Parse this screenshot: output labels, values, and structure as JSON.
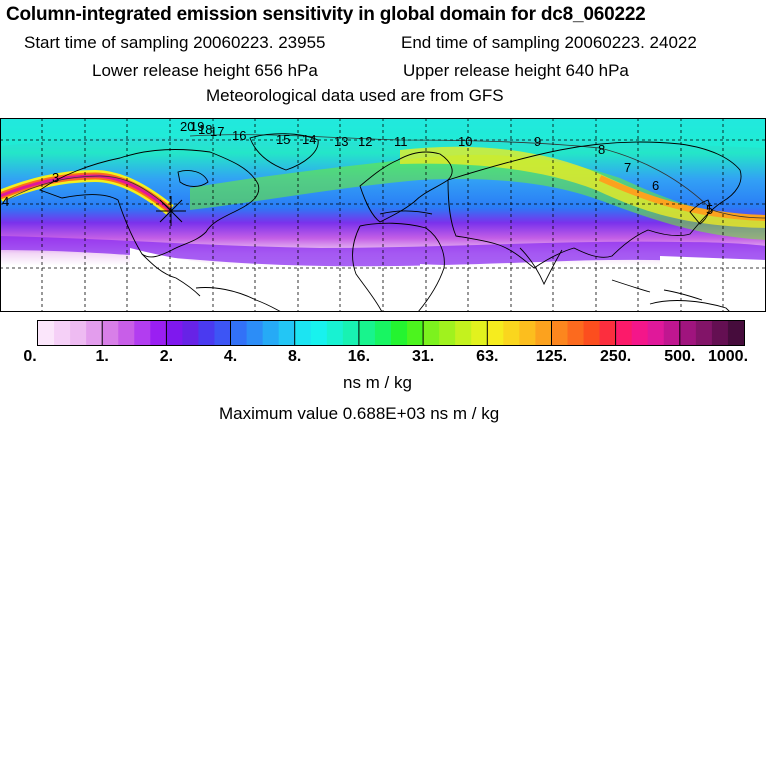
{
  "header": {
    "title": "Column-integrated emission sensitivity in global domain for dc8_060222",
    "start_time": "Start time of sampling 20060223. 23955",
    "end_time": "End time of sampling 20060223. 24022",
    "lower_release": "Lower release height  656 hPa",
    "upper_release": "Upper release height  640 hPa",
    "met_data": "Meteorological data used are from GFS"
  },
  "map": {
    "trajectory_labels": [
      "4",
      "3",
      "20",
      "19",
      "18",
      "17",
      "16",
      "15",
      "14",
      "13",
      "12",
      "11",
      "10",
      "9",
      "8",
      "7",
      "6",
      "5"
    ]
  },
  "colorbar": {
    "colors": [
      "#fbe6fb",
      "#f5d0f7",
      "#eebbf2",
      "#e39ded",
      "#d87fe8",
      "#c85ee8",
      "#b23df0",
      "#9a1ff2",
      "#7f18ee",
      "#6723e6",
      "#4a3af0",
      "#3d55f5",
      "#3271f7",
      "#2c8df7",
      "#26aaf6",
      "#23c6f5",
      "#1ce4f2",
      "#18f2ee",
      "#18f2d2",
      "#18f2b2",
      "#18f48d",
      "#18f562",
      "#24f430",
      "#4cf41e",
      "#7cf21e",
      "#a0f21e",
      "#c4f21e",
      "#e2f21e",
      "#f6ec1e",
      "#fad61e",
      "#fcbe1e",
      "#fca21e",
      "#fc861e",
      "#fc6a1e",
      "#fc4e1e",
      "#fc2e3e",
      "#fc1a6a",
      "#f4168a",
      "#e0189a",
      "#c01690",
      "#a0147e",
      "#821468",
      "#640f52",
      "#460c3c"
    ],
    "tick_labels": [
      "0.",
      "1.",
      "2.",
      "4.",
      "8.",
      "16.",
      "31.",
      "63.",
      "125.",
      "250.",
      "500.",
      "1000."
    ],
    "unit": "ns m / kg"
  },
  "footer": {
    "max_value": "Maximum value  0.688E+03 ns m / kg"
  }
}
